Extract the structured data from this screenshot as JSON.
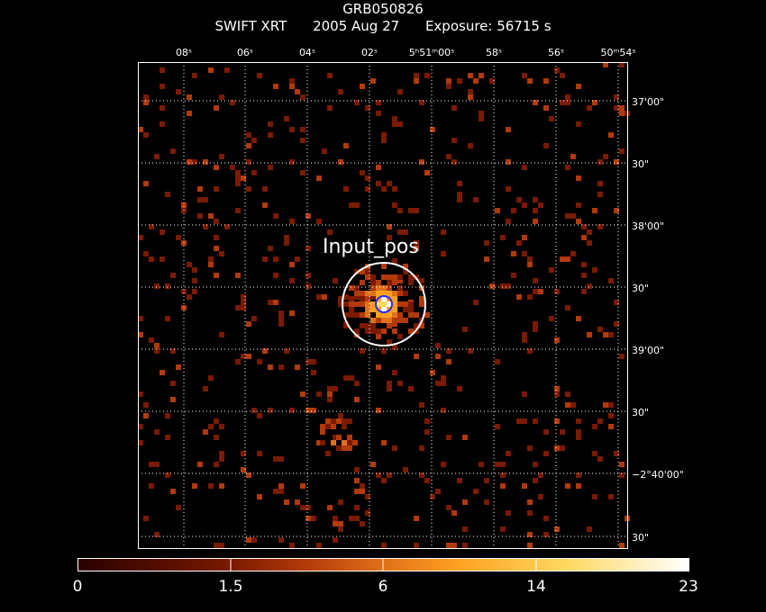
{
  "header": {
    "title": "GRB050826",
    "instrument": "SWIFT XRT",
    "date": "2005 Aug 27",
    "exposure": "Exposure: 56715 s"
  },
  "ra_ticks": [
    {
      "label": "08ˢ"
    },
    {
      "label": "06ˢ"
    },
    {
      "label": "04ˢ"
    },
    {
      "label": "02ˢ"
    },
    {
      "label": "5ʰ51ᵐ00ˢ"
    },
    {
      "label": "58ˢ"
    },
    {
      "label": "56ˢ"
    },
    {
      "label": "50ᵐ54ˢ"
    }
  ],
  "dec_ticks": [
    {
      "label": "37'00\""
    },
    {
      "label": "30\""
    },
    {
      "label": "38'00\""
    },
    {
      "label": "30\""
    },
    {
      "label": "39'00\""
    },
    {
      "label": "30\""
    },
    {
      "label": "−2°40'00\""
    },
    {
      "label": "30\""
    }
  ],
  "region": {
    "label": "Input_pos"
  },
  "colorbar": {
    "ticks": [
      "0",
      "1.5",
      "6",
      "14",
      "23"
    ],
    "colors": [
      "#2a0000",
      "#7a1a00",
      "#b23a0a",
      "#e0701a",
      "#ffa020",
      "#ffd860",
      "#ffffff"
    ]
  },
  "colors": {
    "background": "#000000",
    "frame": "#ffffff",
    "grid": "#ffffff",
    "region_outer": "#ffffff",
    "region_inner": "#2a2aff"
  }
}
